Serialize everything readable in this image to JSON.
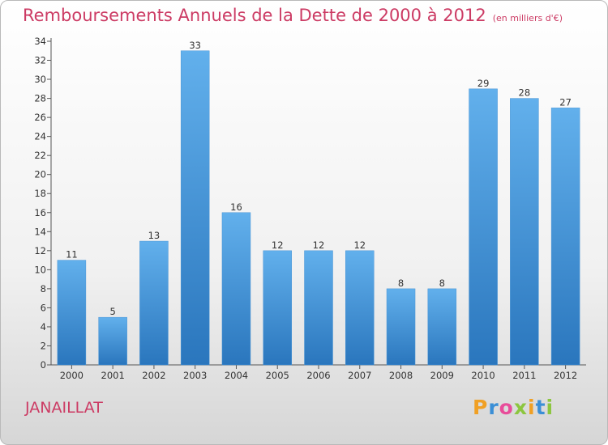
{
  "header": {
    "title": "Remboursements Annuels de la Dette de 2000 à 2012",
    "subtitle": "(en milliers d'€)"
  },
  "footer": {
    "commune": "JANAILLAT",
    "brand": "Proxiti",
    "brand_letters": [
      {
        "ch": "P",
        "color": "#f0a024"
      },
      {
        "ch": "r",
        "color": "#3b8fd6"
      },
      {
        "ch": "o",
        "color": "#e84d9a"
      },
      {
        "ch": "x",
        "color": "#8cc63f"
      },
      {
        "ch": "i",
        "color": "#f0a024"
      },
      {
        "ch": "t",
        "color": "#3b8fd6"
      },
      {
        "ch": "i",
        "color": "#8cc63f"
      }
    ]
  },
  "chart_data": {
    "type": "bar",
    "title": "Remboursements Annuels de la Dette de 2000 à 2012",
    "subtitle": "(en milliers d'€)",
    "categories": [
      "2000",
      "2001",
      "2002",
      "2003",
      "2004",
      "2005",
      "2006",
      "2007",
      "2008",
      "2009",
      "2010",
      "2011",
      "2012"
    ],
    "values": [
      11,
      5,
      13,
      33,
      16,
      12,
      12,
      12,
      8,
      8,
      29,
      28,
      27
    ],
    "ylim": [
      0,
      34
    ],
    "yticks": [
      0,
      2,
      4,
      6,
      8,
      10,
      12,
      14,
      16,
      18,
      20,
      22,
      24,
      26,
      28,
      30,
      32,
      34
    ],
    "xlabel": "",
    "ylabel": "",
    "grid": false,
    "colors": {
      "bar_top": "#62b0ec",
      "bar_bottom": "#2a76bd",
      "axis": "#555555",
      "text": "#333333",
      "title": "#cc3b64"
    }
  }
}
